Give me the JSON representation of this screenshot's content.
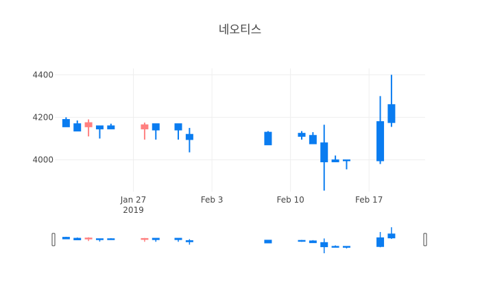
{
  "chart_data": {
    "type": "candlestick",
    "title": "네오티스",
    "xlabel": "",
    "ylabel": "",
    "ylim": [
      3850,
      4430
    ],
    "y_ticks": [
      4000,
      4200,
      4400
    ],
    "x_ticks": [
      {
        "date": "2019-01-27",
        "label": "Jan 27",
        "sublabel": "2019"
      },
      {
        "date": "2019-02-03",
        "label": "Feb 3",
        "sublabel": ""
      },
      {
        "date": "2019-02-10",
        "label": "Feb 10",
        "sublabel": ""
      },
      {
        "date": "2019-02-17",
        "label": "Feb 17",
        "sublabel": ""
      }
    ],
    "x_range": [
      "2019-01-20",
      "2019-02-22"
    ],
    "grid": true,
    "legend": "none",
    "rangeslider": true,
    "colors": {
      "increasing": "#ff8080",
      "decreasing": "#0a7cf0"
    },
    "candles": [
      {
        "date": "2019-01-21",
        "open": 4190,
        "high": 4200,
        "low": 4155,
        "close": 4155
      },
      {
        "date": "2019-01-22",
        "open": 4170,
        "high": 4185,
        "low": 4135,
        "close": 4135
      },
      {
        "date": "2019-01-23",
        "open": 4155,
        "high": 4190,
        "low": 4110,
        "close": 4175
      },
      {
        "date": "2019-01-24",
        "open": 4160,
        "high": 4160,
        "low": 4100,
        "close": 4145
      },
      {
        "date": "2019-01-25",
        "open": 4160,
        "high": 4170,
        "low": 4145,
        "close": 4145
      },
      {
        "date": "2019-01-28",
        "open": 4145,
        "high": 4175,
        "low": 4095,
        "close": 4165
      },
      {
        "date": "2019-01-29",
        "open": 4170,
        "high": 4170,
        "low": 4095,
        "close": 4140
      },
      {
        "date": "2019-01-31",
        "open": 4170,
        "high": 4170,
        "low": 4095,
        "close": 4140
      },
      {
        "date": "2019-02-01",
        "open": 4120,
        "high": 4150,
        "low": 4035,
        "close": 4095
      },
      {
        "date": "2019-02-08",
        "open": 4130,
        "high": 4135,
        "low": 4070,
        "close": 4070
      },
      {
        "date": "2019-02-11",
        "open": 4125,
        "high": 4135,
        "low": 4095,
        "close": 4110
      },
      {
        "date": "2019-02-12",
        "open": 4115,
        "high": 4130,
        "low": 4075,
        "close": 4075
      },
      {
        "date": "2019-02-13",
        "open": 4080,
        "high": 4165,
        "low": 3855,
        "close": 3990
      },
      {
        "date": "2019-02-14",
        "open": 4000,
        "high": 4020,
        "low": 3990,
        "close": 3990
      },
      {
        "date": "2019-02-15",
        "open": 4000,
        "high": 4000,
        "low": 3955,
        "close": 3995
      },
      {
        "date": "2019-02-18",
        "open": 4180,
        "high": 4300,
        "low": 3980,
        "close": 3995
      },
      {
        "date": "2019-02-19",
        "open": 4260,
        "high": 4400,
        "low": 4155,
        "close": 4175
      }
    ]
  }
}
